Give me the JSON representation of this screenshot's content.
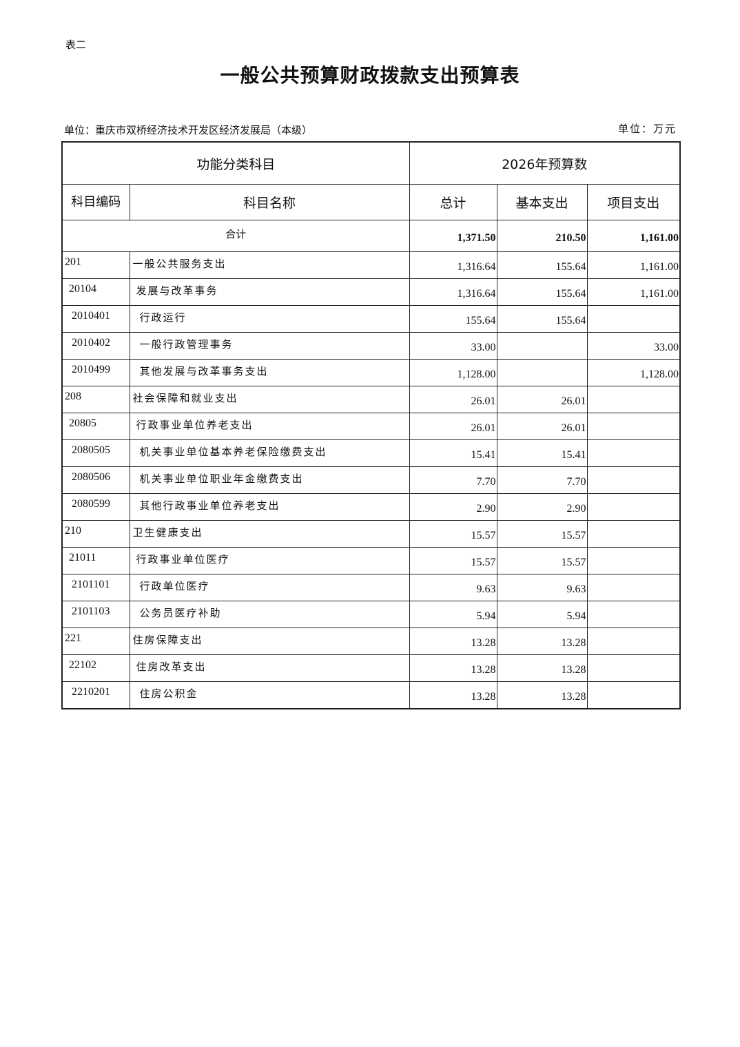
{
  "doc": {
    "table_label": "表二",
    "title": "一般公共预算财政拨款支出预算表",
    "unit_left": "单位：重庆市双桥经济技术开发区经济发展局（本级）",
    "unit_right": "单位：万元"
  },
  "header": {
    "group_left": "功能分类科目",
    "group_right": "2026年预算数",
    "code": "科目编码",
    "name": "科目名称",
    "total": "总计",
    "basic": "基本支出",
    "project": "项目支出"
  },
  "total_row": {
    "label": "合计",
    "total": "1,371.50",
    "basic": "210.50",
    "project": "1,161.00"
  },
  "rows": [
    {
      "level": 1,
      "code": "201",
      "name": "一般公共服务支出",
      "total": "1,316.64",
      "basic": "155.64",
      "project": "1,161.00"
    },
    {
      "level": 2,
      "code": "20104",
      "name": "发展与改革事务",
      "total": "1,316.64",
      "basic": "155.64",
      "project": "1,161.00"
    },
    {
      "level": 3,
      "code": "2010401",
      "name": "行政运行",
      "total": "155.64",
      "basic": "155.64",
      "project": ""
    },
    {
      "level": 3,
      "code": "2010402",
      "name": "一般行政管理事务",
      "total": "33.00",
      "basic": "",
      "project": "33.00"
    },
    {
      "level": 3,
      "code": "2010499",
      "name": "其他发展与改革事务支出",
      "total": "1,128.00",
      "basic": "",
      "project": "1,128.00"
    },
    {
      "level": 1,
      "code": "208",
      "name": "社会保障和就业支出",
      "total": "26.01",
      "basic": "26.01",
      "project": ""
    },
    {
      "level": 2,
      "code": "20805",
      "name": "行政事业单位养老支出",
      "total": "26.01",
      "basic": "26.01",
      "project": ""
    },
    {
      "level": 3,
      "code": "2080505",
      "name": "机关事业单位基本养老保险缴费支出",
      "total": "15.41",
      "basic": "15.41",
      "project": ""
    },
    {
      "level": 3,
      "code": "2080506",
      "name": "机关事业单位职业年金缴费支出",
      "total": "7.70",
      "basic": "7.70",
      "project": ""
    },
    {
      "level": 3,
      "code": "2080599",
      "name": "其他行政事业单位养老支出",
      "total": "2.90",
      "basic": "2.90",
      "project": ""
    },
    {
      "level": 1,
      "code": "210",
      "name": "卫生健康支出",
      "total": "15.57",
      "basic": "15.57",
      "project": ""
    },
    {
      "level": 2,
      "code": "21011",
      "name": "行政事业单位医疗",
      "total": "15.57",
      "basic": "15.57",
      "project": ""
    },
    {
      "level": 3,
      "code": "2101101",
      "name": "行政单位医疗",
      "total": "9.63",
      "basic": "9.63",
      "project": ""
    },
    {
      "level": 3,
      "code": "2101103",
      "name": "公务员医疗补助",
      "total": "5.94",
      "basic": "5.94",
      "project": ""
    },
    {
      "level": 1,
      "code": "221",
      "name": "住房保障支出",
      "total": "13.28",
      "basic": "13.28",
      "project": ""
    },
    {
      "level": 2,
      "code": "22102",
      "name": "住房改革支出",
      "total": "13.28",
      "basic": "13.28",
      "project": ""
    },
    {
      "level": 3,
      "code": "2210201",
      "name": "住房公积金",
      "total": "13.28",
      "basic": "13.28",
      "project": ""
    }
  ]
}
